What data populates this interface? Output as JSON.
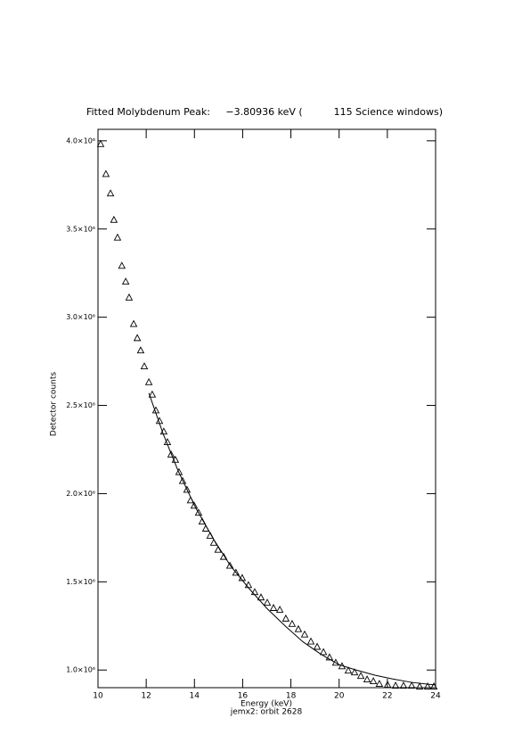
{
  "chart_data": {
    "type": "scatter",
    "title": "Fitted Molybdenum Peak:     −3.80936 keV (          115 Science windows)",
    "x_label": "Energy (keV)",
    "subtitle": "jemx2: orbit 2628",
    "y_label": "Detector counts",
    "xlim": [
      10,
      24
    ],
    "xticks": [
      10,
      12,
      14,
      16,
      18,
      20,
      22,
      24
    ],
    "ylim": [
      900000,
      4065000
    ],
    "yticks": [
      {
        "value": 1000000,
        "label": "1.0×10⁶"
      },
      {
        "value": 1500000,
        "label": "1.5×10⁶"
      },
      {
        "value": 2000000,
        "label": "2.0×10⁶"
      },
      {
        "value": 2500000,
        "label": "2.5×10⁶"
      },
      {
        "value": 3000000,
        "label": "3.0×10⁶"
      },
      {
        "value": 3500000,
        "label": "3.5×10⁶"
      },
      {
        "value": 4000000,
        "label": "4.0×10⁶"
      }
    ],
    "series": [
      {
        "type": "scatter",
        "marker": "triangle",
        "color": "#000000",
        "x": [
          10.11,
          10.33,
          10.52,
          10.66,
          10.81,
          10.99,
          11.15,
          11.29,
          11.48,
          11.63,
          11.77,
          11.92,
          12.11,
          12.25,
          12.4,
          12.55,
          12.73,
          12.88,
          13.03,
          13.21,
          13.36,
          13.51,
          13.69,
          13.84,
          13.99,
          14.17,
          14.32,
          14.47,
          14.65,
          14.8,
          14.98,
          15.21,
          15.47,
          15.72,
          15.98,
          16.24,
          16.5,
          16.76,
          17.02,
          17.28,
          17.54,
          17.79,
          18.05,
          18.31,
          18.57,
          18.83,
          19.09,
          19.35,
          19.6,
          19.86,
          20.12,
          20.38,
          20.64,
          20.9,
          21.16,
          21.42,
          21.67,
          22.01,
          22.34,
          22.67,
          23.01,
          23.34,
          23.67,
          23.93
        ],
        "values": [
          3980000,
          3810000,
          3700000,
          3550000,
          3450000,
          3290000,
          3200000,
          3110000,
          2960000,
          2880000,
          2810000,
          2720000,
          2630000,
          2560000,
          2470000,
          2410000,
          2350000,
          2290000,
          2220000,
          2190000,
          2120000,
          2070000,
          2020000,
          1960000,
          1930000,
          1890000,
          1840000,
          1800000,
          1760000,
          1720000,
          1680000,
          1640000,
          1590000,
          1550000,
          1520000,
          1480000,
          1440000,
          1410000,
          1380000,
          1350000,
          1340000,
          1290000,
          1260000,
          1230000,
          1200000,
          1160000,
          1130000,
          1100000,
          1070000,
          1040000,
          1020000,
          995000,
          985000,
          965000,
          945000,
          935000,
          920000,
          915000,
          910000,
          910000,
          910000,
          905000,
          905000,
          905000
        ]
      },
      {
        "type": "line",
        "color": "#000000",
        "x": [
          12.11,
          12.7,
          13.32,
          14.05,
          14.8,
          15.5,
          16.28,
          17.0,
          17.76,
          18.5,
          19.24,
          20.0,
          20.71,
          21.5,
          22.2,
          23.0,
          24.0
        ],
        "values": [
          2570000,
          2340000,
          2130000,
          1920000,
          1740000,
          1590000,
          1460000,
          1350000,
          1250000,
          1160000,
          1090000,
          1030000,
          1000000,
          970000,
          950000,
          930000,
          915000
        ]
      }
    ]
  }
}
